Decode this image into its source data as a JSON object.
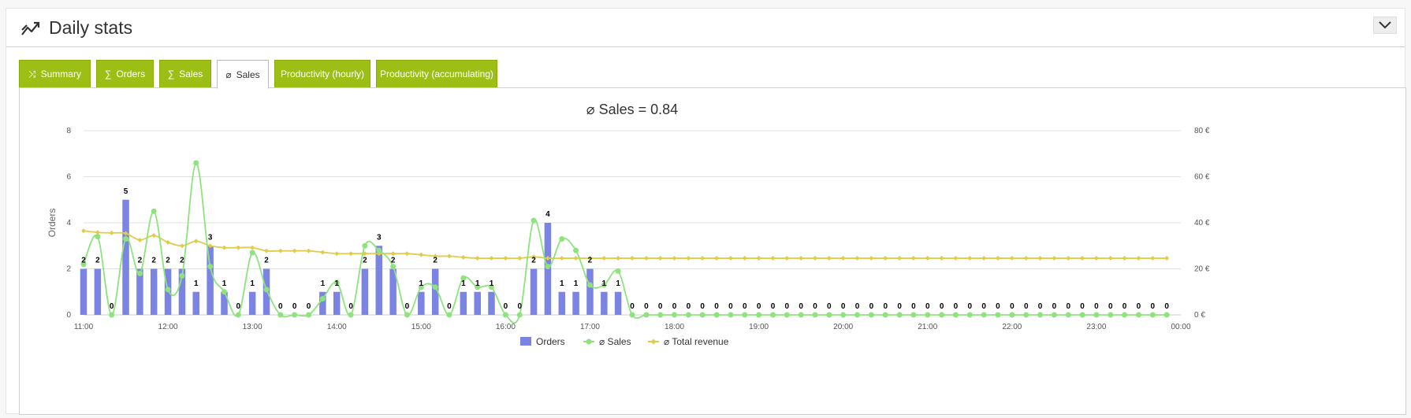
{
  "header": {
    "title": "Daily stats",
    "title_icon": "trend-line-icon",
    "collapse_icon": "chevron-down-icon"
  },
  "tabs": [
    {
      "label": "Summary",
      "icon": "⤨",
      "active": false
    },
    {
      "label": "Orders",
      "icon": "∑",
      "active": false
    },
    {
      "label": "Sales",
      "icon": "∑",
      "active": false
    },
    {
      "label": "Sales",
      "icon": "⌀",
      "active": true
    },
    {
      "label": "Productivity (hourly)",
      "icon": "",
      "active": false
    },
    {
      "label": "Productivity (accumulating)",
      "icon": "",
      "active": false
    }
  ],
  "colors": {
    "tab_bg": "#9dbf15",
    "orders": "#7b83e3",
    "sales": "#8fe37e",
    "revenue": "#e0cc4a"
  },
  "chart_data": {
    "type": "bar",
    "title": "⌀ Sales = 0.84",
    "ylabel": "Orders",
    "ylim": [
      0,
      8
    ],
    "y_ticks": [
      "0",
      "2",
      "4",
      "6",
      "8"
    ],
    "y2lim": [
      0,
      80
    ],
    "y2_ticks": [
      "0 €",
      "20 €",
      "40 €",
      "60 €",
      "80 €"
    ],
    "xlim": [
      11.0,
      24.0
    ],
    "x_ticks": [
      "11:00",
      "12:00",
      "13:00",
      "14:00",
      "15:00",
      "16:00",
      "17:00",
      "18:00",
      "19:00",
      "20:00",
      "21:00",
      "22:00",
      "23:00",
      "00:00"
    ],
    "x": [
      11.0,
      11.167,
      11.333,
      11.5,
      11.667,
      11.833,
      12.0,
      12.167,
      12.333,
      12.5,
      12.667,
      12.833,
      13.0,
      13.167,
      13.333,
      13.5,
      13.667,
      13.833,
      14.0,
      14.167,
      14.333,
      14.5,
      14.667,
      14.833,
      15.0,
      15.167,
      15.333,
      15.5,
      15.667,
      15.833,
      16.0,
      16.167,
      16.333,
      16.5,
      16.667,
      16.833,
      17.0,
      17.167,
      17.333,
      17.5,
      17.667,
      17.833,
      18.0,
      18.167,
      18.333,
      18.5,
      18.667,
      18.833,
      19.0,
      19.167,
      19.333,
      19.5,
      19.667,
      19.833,
      20.0,
      20.167,
      20.333,
      20.5,
      20.667,
      20.833,
      21.0,
      21.167,
      21.333,
      21.5,
      21.667,
      21.833,
      22.0,
      22.167,
      22.333,
      22.5,
      22.667,
      22.833,
      23.0,
      23.167,
      23.333,
      23.5,
      23.667,
      23.833
    ],
    "series": [
      {
        "name": "Orders",
        "type": "bar",
        "axis": "left",
        "values": [
          2,
          2,
          0,
          5,
          2,
          2,
          2,
          2,
          1,
          3,
          1,
          0,
          1,
          2,
          0,
          0,
          0,
          1,
          1,
          0,
          2,
          3,
          2,
          0,
          1,
          2,
          0,
          1,
          1,
          1,
          0,
          0,
          2,
          4,
          1,
          1,
          2,
          1,
          1,
          0,
          0,
          0,
          0,
          0,
          0,
          0,
          0,
          0,
          0,
          0,
          0,
          0,
          0,
          0,
          0,
          0,
          0,
          0,
          0,
          0,
          0,
          0,
          0,
          0,
          0,
          0,
          0,
          0,
          0,
          0,
          0,
          0,
          0,
          0,
          0,
          0,
          0,
          0
        ]
      },
      {
        "name": "⌀ Sales",
        "type": "line",
        "axis": "left",
        "values": [
          2.2,
          3.4,
          0,
          3.3,
          1.8,
          4.5,
          1.1,
          1.7,
          6.6,
          2.1,
          1.0,
          0,
          2.7,
          1.1,
          0,
          0,
          0,
          0.7,
          1.4,
          0,
          3.0,
          2.8,
          2.1,
          0,
          1.2,
          1.2,
          0,
          1.6,
          1.2,
          1.2,
          0,
          0,
          4.1,
          2.1,
          3.3,
          2.8,
          1.3,
          1.3,
          1.9,
          0,
          0,
          0,
          0,
          0,
          0,
          0,
          0,
          0,
          0,
          0,
          0,
          0,
          0,
          0,
          0,
          0,
          0,
          0,
          0,
          0,
          0,
          0,
          0,
          0,
          0,
          0,
          0,
          0,
          0,
          0,
          0,
          0,
          0,
          0,
          0,
          0,
          0,
          0
        ]
      },
      {
        "name": "⌀ Total revenue",
        "type": "line",
        "axis": "right",
        "values": [
          36.5,
          35.8,
          35.6,
          35.4,
          32.5,
          34.5,
          31.5,
          30.0,
          32.0,
          30.0,
          29.2,
          29.2,
          29.2,
          27.8,
          27.8,
          27.8,
          27.8,
          27.2,
          26.6,
          26.6,
          26.6,
          26.6,
          26.6,
          26.6,
          26.1,
          25.5,
          25.5,
          25.0,
          24.6,
          24.6,
          24.6,
          24.6,
          25.2,
          24.6,
          24.6,
          24.6,
          24.6,
          24.6,
          24.6,
          24.6,
          24.6,
          24.6,
          24.6,
          24.6,
          24.6,
          24.6,
          24.6,
          24.6,
          24.6,
          24.6,
          24.6,
          24.6,
          24.6,
          24.6,
          24.6,
          24.6,
          24.6,
          24.6,
          24.6,
          24.6,
          24.6,
          24.6,
          24.6,
          24.6,
          24.6,
          24.6,
          24.6,
          24.6,
          24.6,
          24.6,
          24.6,
          24.6,
          24.6,
          24.6,
          24.6,
          24.6,
          24.6,
          24.6
        ]
      }
    ],
    "legend": [
      "Orders",
      "⌀ Sales",
      "⌀ Total revenue"
    ],
    "legend_position": "bottom-center",
    "grid": true
  }
}
